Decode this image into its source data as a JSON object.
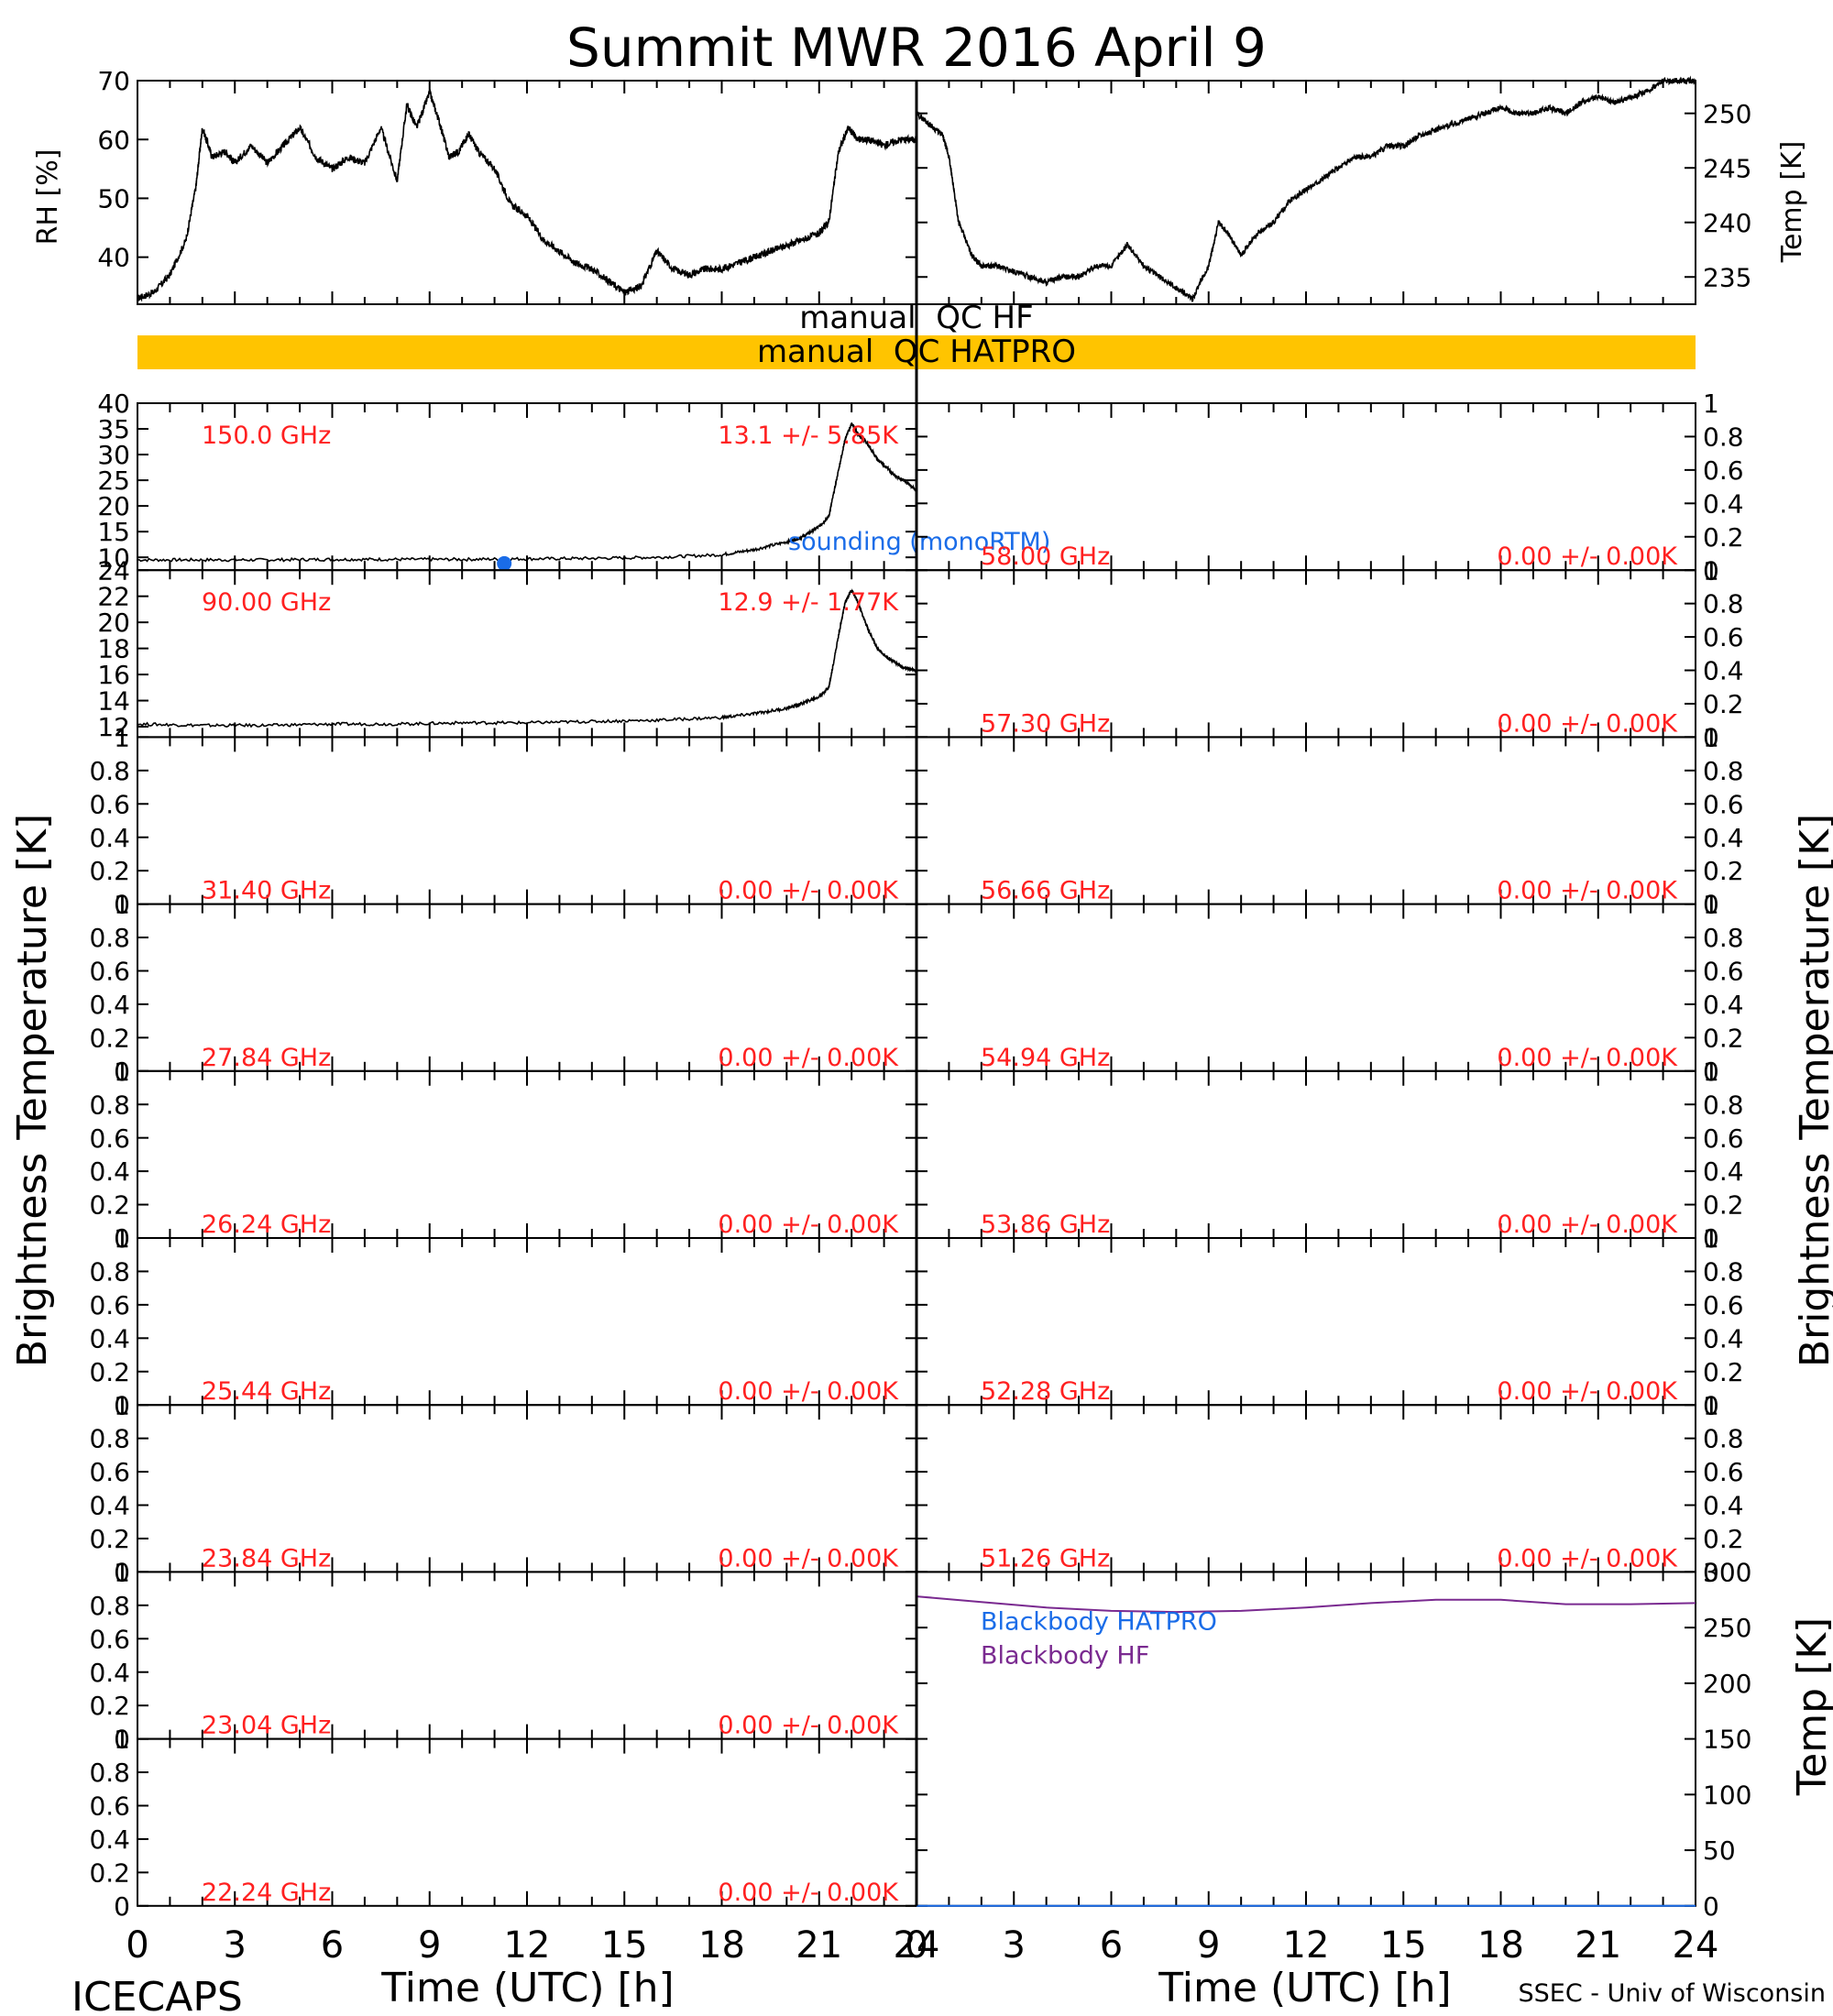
{
  "title": "Summit MWR 2016 April  9",
  "footer": {
    "left": "ICECAPS",
    "right": "SSEC - Univ of Wisconsin"
  },
  "qc_bars": {
    "hf_label": "manual  QC HF",
    "hatpro_label": "manual  QC HATPRO",
    "hatpro_color": "#ffc400"
  },
  "y_labels": {
    "rh": "RH [%]",
    "temp": "Temp [K]",
    "tb_left": "Brightness Temperature [K]",
    "tb_right": "Brightness Temperature [K]",
    "bb_temp": "Temp [K]"
  },
  "x_label": "Time (UTC) [h]",
  "x_ticks": [
    "0",
    "3",
    "6",
    "9",
    "12",
    "15",
    "18",
    "21",
    "24"
  ],
  "colors": {
    "text_red": "#ff2020",
    "sounding_blue": "#1a6ce8",
    "bb_hf": "#7a2a90",
    "trace": "#000000"
  },
  "chart_data": [
    {
      "type": "line",
      "id": "rh",
      "ylabel": "RH [%]",
      "xlim": [
        0,
        24
      ],
      "ylim": [
        32,
        70
      ],
      "yticks": [
        40,
        50,
        60,
        70
      ],
      "x": [
        0,
        0.5,
        1.0,
        1.5,
        1.8,
        2.0,
        2.3,
        2.7,
        3.0,
        3.5,
        4.0,
        4.5,
        5.0,
        5.5,
        6.0,
        6.5,
        7.0,
        7.5,
        8.0,
        8.3,
        8.6,
        9.0,
        9.3,
        9.6,
        9.9,
        10.2,
        10.5,
        11.0,
        11.5,
        12.0,
        12.5,
        13.0,
        13.5,
        14.0,
        14.5,
        15.0,
        15.5,
        16.0,
        16.5,
        17.0,
        17.5,
        18.0,
        18.5,
        19.0,
        19.5,
        20.0,
        20.5,
        21.0,
        21.3,
        21.6,
        21.9,
        22.2,
        22.5,
        23.0,
        23.5,
        24.0
      ],
      "y": [
        33,
        34,
        37,
        43,
        52,
        62,
        57,
        58,
        56,
        59,
        56,
        59,
        62,
        57,
        55,
        57,
        56,
        62,
        53,
        66,
        62,
        68,
        63,
        57,
        58,
        61,
        58,
        55,
        49,
        47,
        43,
        41,
        39,
        38,
        36,
        34,
        35,
        41,
        38,
        37,
        38,
        38,
        39,
        40,
        41,
        42,
        43,
        44,
        46,
        58,
        62,
        60,
        60,
        59,
        60,
        60
      ]
    },
    {
      "type": "line",
      "id": "temp",
      "ylabel": "Temp [K]",
      "xlim": [
        0,
        24
      ],
      "ylim": [
        232.5,
        253
      ],
      "yticks": [
        235,
        240,
        245,
        250
      ],
      "x": [
        0,
        0.4,
        0.8,
        1.0,
        1.3,
        1.7,
        2.0,
        2.5,
        3.0,
        3.5,
        4.0,
        4.5,
        5.0,
        5.5,
        6.0,
        6.5,
        7.0,
        7.5,
        8.0,
        8.5,
        9.0,
        9.3,
        9.6,
        10.0,
        10.5,
        11.0,
        11.5,
        12.0,
        12.5,
        13.0,
        13.5,
        14.0,
        14.5,
        15.0,
        15.5,
        16.0,
        16.5,
        17.0,
        17.5,
        18.0,
        18.5,
        19.0,
        19.5,
        20.0,
        20.5,
        21.0,
        21.5,
        22.0,
        22.5,
        23.0,
        23.5,
        24.0
      ],
      "y": [
        250,
        249,
        248,
        246,
        240,
        237,
        236,
        236,
        235.5,
        235,
        234.5,
        235,
        235,
        236,
        236,
        238,
        236,
        235,
        234,
        233,
        236,
        240,
        239,
        237,
        239,
        240,
        242,
        243,
        244,
        245,
        246,
        246,
        247,
        247,
        248,
        248.5,
        249,
        249.5,
        250,
        250.5,
        250,
        250,
        250.5,
        250,
        251,
        251.5,
        251,
        251.5,
        252,
        253,
        253,
        253
      ]
    },
    {
      "type": "line",
      "id": "ch-150",
      "freq": "150.0 GHz",
      "stat": "13.1 +/-  5.85K",
      "xlim": [
        0,
        24
      ],
      "ylim": [
        7.5,
        40
      ],
      "yticks": [
        10,
        15,
        20,
        25,
        30,
        35,
        40
      ],
      "x": [
        0,
        2,
        4,
        6,
        8,
        10,
        12,
        14,
        16,
        18,
        19,
        20,
        20.5,
        21,
        21.3,
        21.6,
        21.8,
        22.0,
        22.2,
        22.5,
        22.8,
        23.0,
        23.3,
        23.6,
        24.0
      ],
      "y": [
        9.5,
        9.5,
        9.5,
        9.6,
        9.6,
        9.6,
        9.7,
        9.8,
        10.0,
        10.5,
        11.5,
        13,
        14,
        16,
        18,
        27,
        33,
        36,
        34,
        32,
        29,
        28,
        26,
        25,
        23
      ],
      "sounding": {
        "label": "sounding (monoRTM)",
        "x": [
          11.3
        ],
        "y": [
          8.8
        ]
      }
    },
    {
      "type": "line",
      "id": "ch-90",
      "freq": "90.00 GHz",
      "stat": "12.9 +/-  1.77K",
      "xlim": [
        0,
        24
      ],
      "ylim": [
        11.2,
        24
      ],
      "yticks": [
        12,
        14,
        16,
        18,
        20,
        22,
        24
      ],
      "x": [
        0,
        2,
        4,
        6,
        8,
        10,
        12,
        14,
        16,
        18,
        19,
        20,
        20.5,
        21,
        21.3,
        21.6,
        21.8,
        22.0,
        22.2,
        22.5,
        22.8,
        23.0,
        23.3,
        23.6,
        24.0
      ],
      "y": [
        12.2,
        12.1,
        12.1,
        12.2,
        12.2,
        12.3,
        12.3,
        12.4,
        12.5,
        12.7,
        13,
        13.4,
        13.8,
        14.3,
        15.0,
        19,
        21.5,
        22.5,
        21.5,
        19.5,
        18,
        17.5,
        17,
        16.5,
        16.3
      ]
    },
    {
      "type": "line",
      "id": "ch-31.40",
      "freq": "31.40 GHz",
      "stat": "0.00 +/-  0.00K",
      "ylim": [
        0,
        1
      ],
      "x": [],
      "y": []
    },
    {
      "type": "line",
      "id": "ch-27.84",
      "freq": "27.84 GHz",
      "stat": "0.00 +/-  0.00K",
      "ylim": [
        0,
        1
      ],
      "x": [],
      "y": []
    },
    {
      "type": "line",
      "id": "ch-26.24",
      "freq": "26.24 GHz",
      "stat": "0.00 +/-  0.00K",
      "ylim": [
        0,
        1
      ],
      "x": [],
      "y": []
    },
    {
      "type": "line",
      "id": "ch-25.44",
      "freq": "25.44 GHz",
      "stat": "0.00 +/-  0.00K",
      "ylim": [
        0,
        1
      ],
      "x": [],
      "y": []
    },
    {
      "type": "line",
      "id": "ch-23.84",
      "freq": "23.84 GHz",
      "stat": "0.00 +/-  0.00K",
      "ylim": [
        0,
        1
      ],
      "x": [],
      "y": []
    },
    {
      "type": "line",
      "id": "ch-23.04",
      "freq": "23.04 GHz",
      "stat": "0.00 +/-  0.00K",
      "ylim": [
        0,
        1
      ],
      "x": [],
      "y": []
    },
    {
      "type": "line",
      "id": "ch-22.24",
      "freq": "22.24 GHz",
      "stat": "0.00 +/-  0.00K",
      "ylim": [
        0,
        1
      ],
      "x": [],
      "y": []
    },
    {
      "type": "line",
      "id": "ch-58.00",
      "freq": "58.00 GHz",
      "stat": "0.00 +/-  0.00K",
      "ylim": [
        0,
        1
      ],
      "x": [],
      "y": []
    },
    {
      "type": "line",
      "id": "ch-57.30",
      "freq": "57.30 GHz",
      "stat": "0.00 +/-  0.00K",
      "ylim": [
        0,
        1
      ],
      "x": [],
      "y": []
    },
    {
      "type": "line",
      "id": "ch-56.66",
      "freq": "56.66 GHz",
      "stat": "0.00 +/-  0.00K",
      "ylim": [
        0,
        1
      ],
      "x": [],
      "y": []
    },
    {
      "type": "line",
      "id": "ch-54.94",
      "freq": "54.94 GHz",
      "stat": "0.00 +/-  0.00K",
      "ylim": [
        0,
        1
      ],
      "x": [],
      "y": []
    },
    {
      "type": "line",
      "id": "ch-53.86",
      "freq": "53.86 GHz",
      "stat": "0.00 +/-  0.00K",
      "ylim": [
        0,
        1
      ],
      "x": [],
      "y": []
    },
    {
      "type": "line",
      "id": "ch-52.28",
      "freq": "52.28 GHz",
      "stat": "0.00 +/-  0.00K",
      "ylim": [
        0,
        1
      ],
      "x": [],
      "y": []
    },
    {
      "type": "line",
      "id": "ch-51.26",
      "freq": "51.26 GHz",
      "stat": "0.00 +/-  0.00K",
      "ylim": [
        0,
        1
      ],
      "x": [],
      "y": []
    },
    {
      "type": "line",
      "id": "blackbody",
      "ylabel": "Temp [K]",
      "xlim": [
        0,
        24
      ],
      "ylim": [
        0,
        300
      ],
      "yticks": [
        0,
        50,
        100,
        150,
        200,
        250,
        300
      ],
      "legend": [
        "Blackbody HATPRO",
        "Blackbody HF"
      ],
      "series": [
        {
          "name": "Blackbody HF",
          "x": [
            0,
            2,
            4,
            6,
            8,
            10,
            12,
            14,
            16,
            18,
            20,
            22,
            24
          ],
          "y": [
            278,
            273,
            268,
            265,
            264,
            265,
            268,
            272,
            275,
            275,
            271,
            271,
            272
          ]
        },
        {
          "name": "Blackbody HATPRO",
          "x": [
            0,
            24
          ],
          "y": [
            0,
            0
          ]
        }
      ]
    }
  ]
}
